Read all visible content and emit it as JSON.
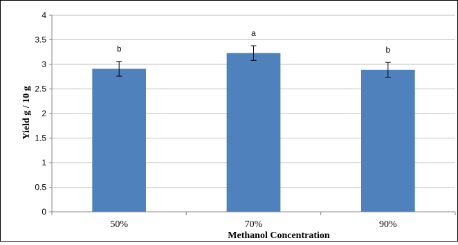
{
  "chart_data": {
    "type": "bar",
    "categories": [
      "50%",
      "70%",
      "90%"
    ],
    "values": [
      2.91,
      3.23,
      2.89
    ],
    "errors": [
      0.15,
      0.15,
      0.15
    ],
    "significance_labels": [
      "b",
      "a",
      "b"
    ],
    "xlabel": "Methanol Concentration",
    "ylabel": "Yield  g / 10 g",
    "ylim": [
      0,
      4
    ],
    "yticks": [
      "0",
      "0.5",
      "1",
      "1.5",
      "2",
      "2.5",
      "3",
      "3.5",
      "4"
    ],
    "grid": true,
    "legend": "none",
    "bar_color": "#4F81BD",
    "grid_color": "#BFBFBF",
    "axis_color": "#868686"
  }
}
